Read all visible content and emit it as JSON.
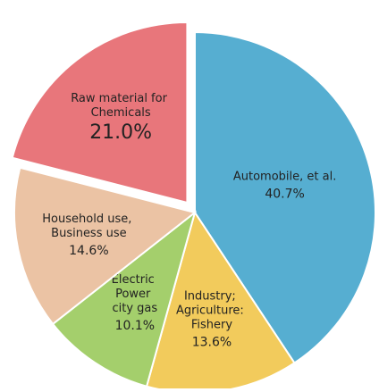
{
  "chart_data": {
    "type": "pie",
    "categories": [
      "Automobile, et al.",
      "Industry;\nAgriculture:\nFishery",
      "Electric\nPower\ncity gas",
      "Household use,\nBusiness use",
      "Raw material for\nChemicals"
    ],
    "values": [
      40.7,
      13.6,
      10.1,
      14.6,
      21.0
    ],
    "value_labels": [
      "40.7%",
      "13.6%",
      "10.1%",
      "14.6%",
      "21.0%"
    ],
    "colors": [
      "#56aed1",
      "#f2cb5c",
      "#a4cf6c",
      "#ebc3a4",
      "#e8767b"
    ],
    "explode": [
      false,
      false,
      false,
      false,
      true
    ]
  }
}
